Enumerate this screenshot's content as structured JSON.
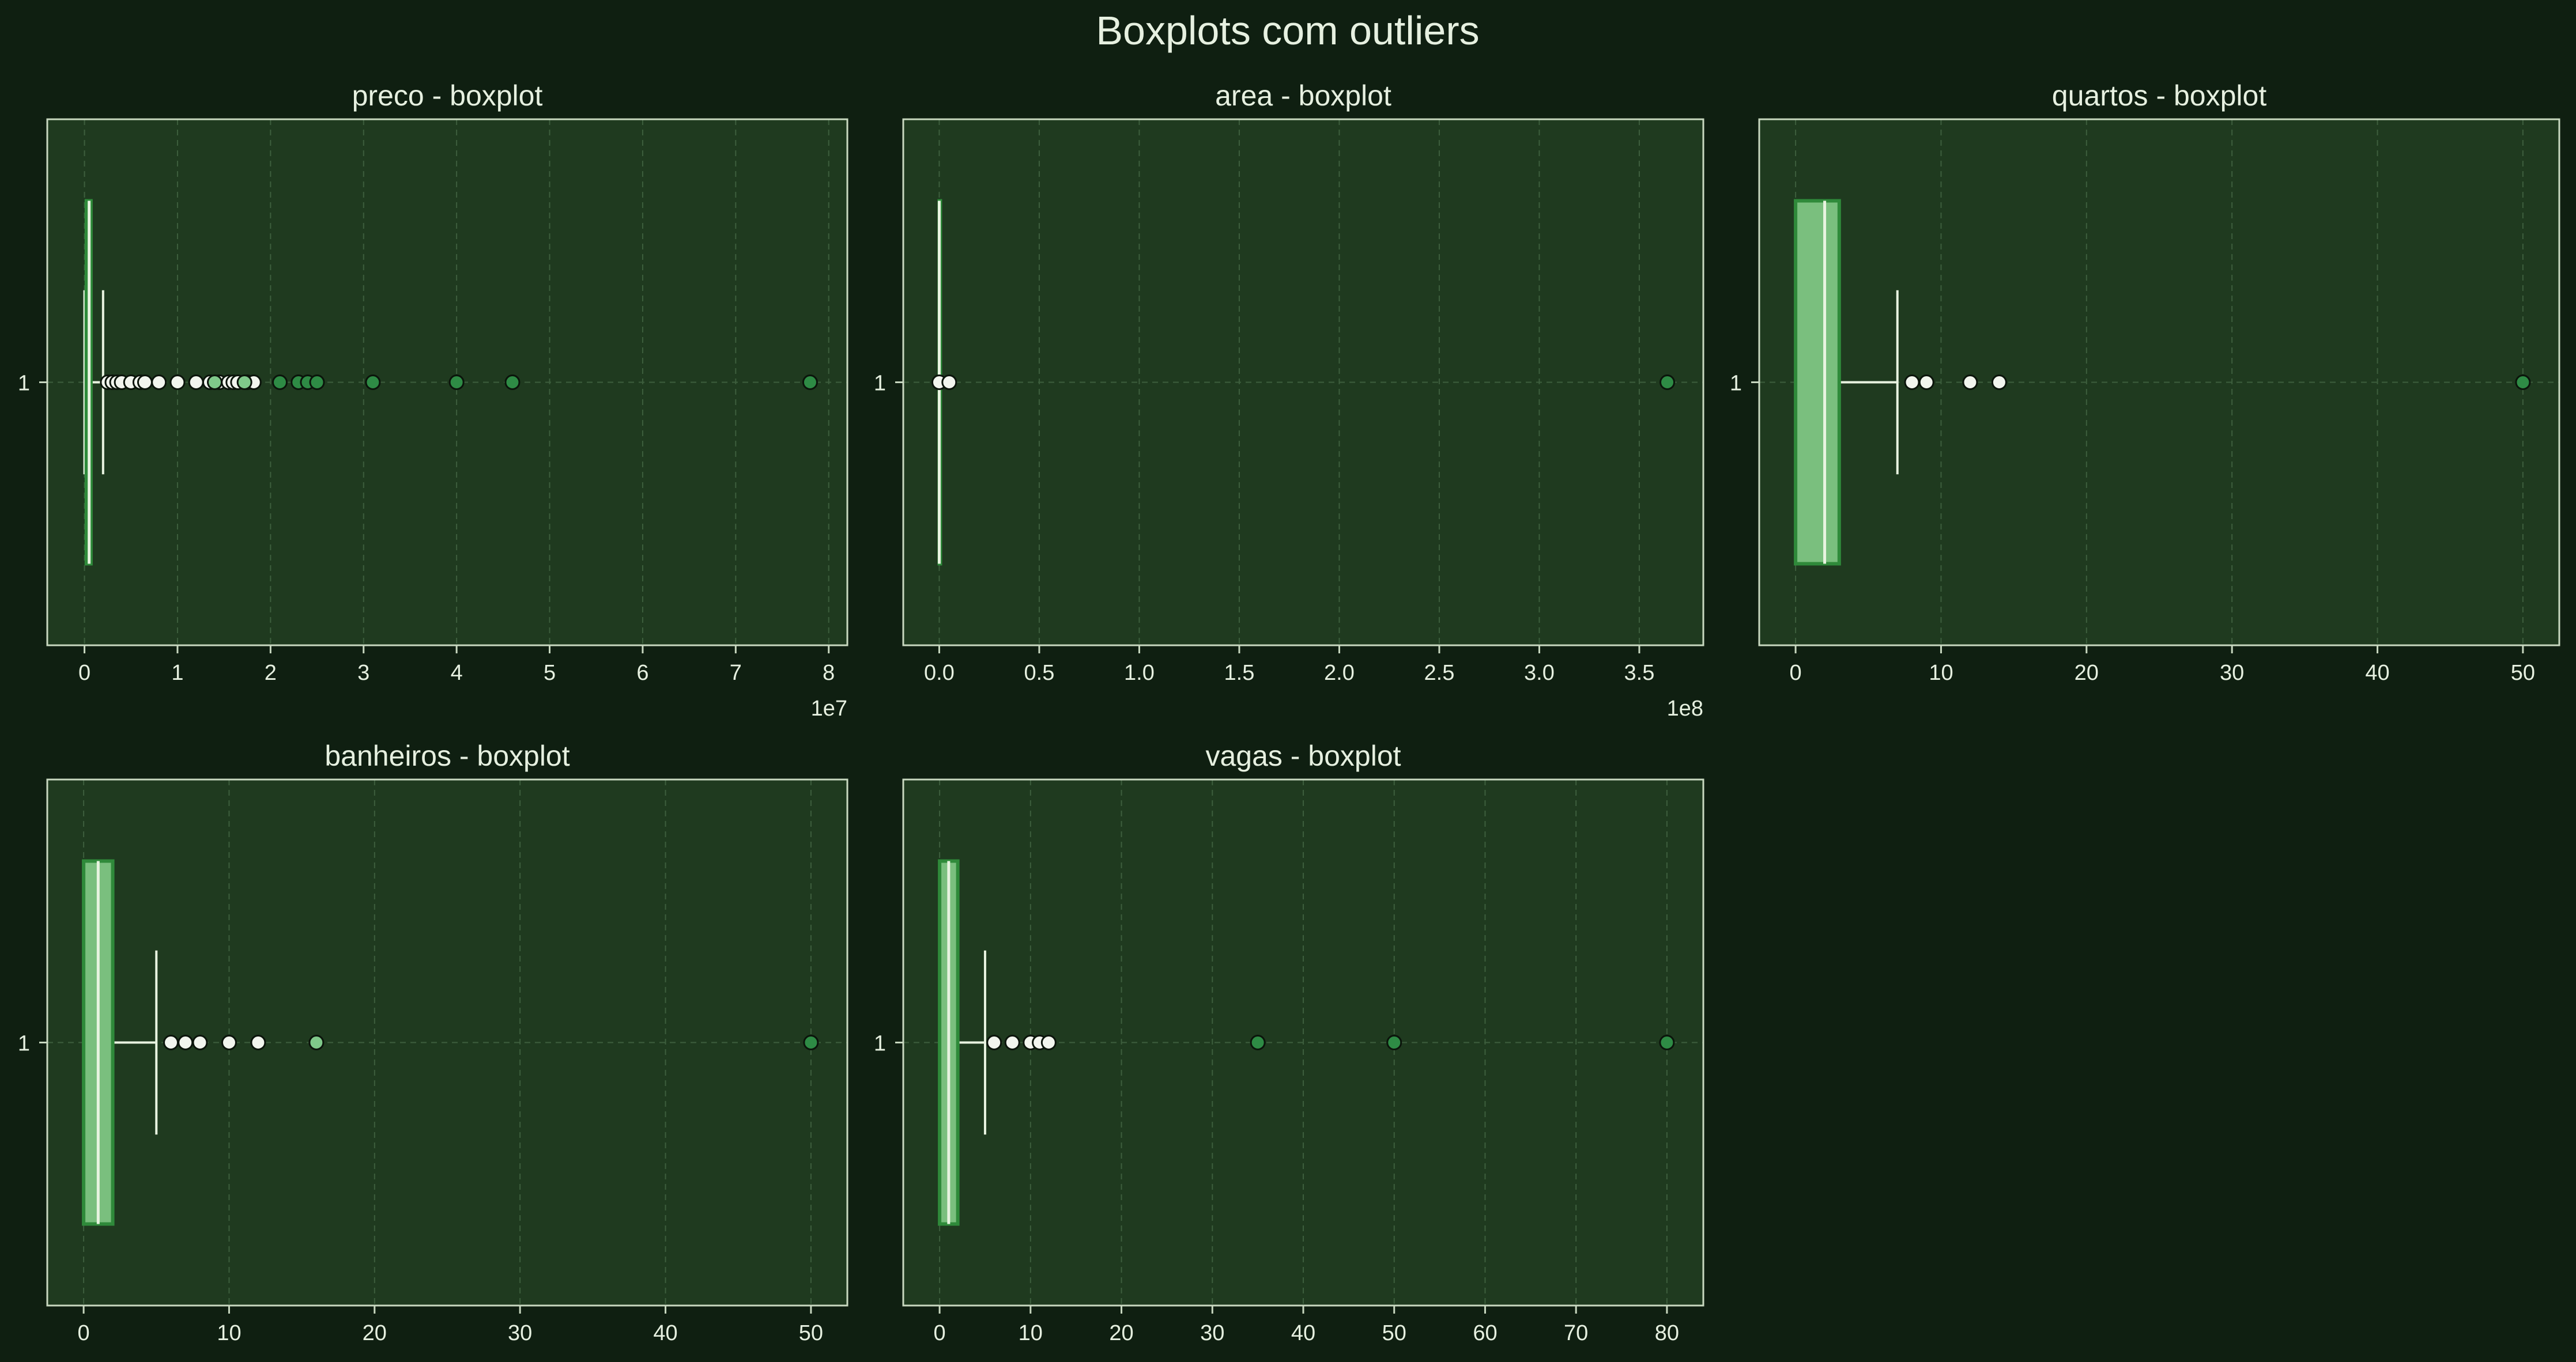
{
  "figure": {
    "title": "Boxplots com outliers",
    "background": "#0f1f11",
    "axes_background": "#1f3a1f",
    "text_color": "#e6f0e0",
    "spine_color": "#c8d8c0",
    "grid_color": "#3d5e3d"
  },
  "chart_data": [
    {
      "type": "boxplot",
      "title": "preco - boxplot",
      "category_label": "1",
      "xlim": [
        -0.4,
        8.2
      ],
      "xticks": [
        0,
        1,
        2,
        3,
        4,
        5,
        6,
        7,
        8
      ],
      "xtick_labels": [
        "0",
        "1",
        "2",
        "3",
        "4",
        "5",
        "6",
        "7",
        "8"
      ],
      "offset_label": "1e7",
      "grid": true,
      "box": {
        "q1": 0.02,
        "median": 0.05,
        "q3": 0.07,
        "whisker_low": 0.0,
        "whisker_high": 0.2
      },
      "outliers": [
        {
          "x": 0.25,
          "fill": "#f2f5ee"
        },
        {
          "x": 0.3,
          "fill": "#f2f5ee"
        },
        {
          "x": 0.35,
          "fill": "#f2f5ee"
        },
        {
          "x": 0.4,
          "fill": "#f2f5ee"
        },
        {
          "x": 0.5,
          "fill": "#f2f5ee"
        },
        {
          "x": 0.6,
          "fill": "#f2f5ee"
        },
        {
          "x": 0.65,
          "fill": "#f2f5ee"
        },
        {
          "x": 0.8,
          "fill": "#f2f5ee"
        },
        {
          "x": 1.0,
          "fill": "#f2f5ee"
        },
        {
          "x": 1.2,
          "fill": "#f2f5ee"
        },
        {
          "x": 1.35,
          "fill": "#f2f5ee"
        },
        {
          "x": 1.45,
          "fill": "#f2f5ee"
        },
        {
          "x": 1.55,
          "fill": "#f2f5ee"
        },
        {
          "x": 1.6,
          "fill": "#f2f5ee"
        },
        {
          "x": 1.65,
          "fill": "#f2f5ee"
        },
        {
          "x": 1.75,
          "fill": "#f2f5ee"
        },
        {
          "x": 1.82,
          "fill": "#f2f5ee"
        },
        {
          "x": 1.4,
          "fill": "#7fc98a"
        },
        {
          "x": 1.72,
          "fill": "#7fc98a"
        },
        {
          "x": 2.1,
          "fill": "#2e8b45"
        },
        {
          "x": 2.3,
          "fill": "#2e8b45"
        },
        {
          "x": 2.4,
          "fill": "#2e8b45"
        },
        {
          "x": 2.5,
          "fill": "#2e8b45"
        },
        {
          "x": 3.1,
          "fill": "#2e8b45"
        },
        {
          "x": 4.0,
          "fill": "#2e8b45"
        },
        {
          "x": 4.6,
          "fill": "#2e8b45"
        },
        {
          "x": 7.8,
          "fill": "#2e8b45"
        }
      ]
    },
    {
      "type": "boxplot",
      "title": "area - boxplot",
      "category_label": "1",
      "xlim": [
        -0.18,
        3.82
      ],
      "xticks": [
        0,
        0.5,
        1.0,
        1.5,
        2.0,
        2.5,
        3.0,
        3.5
      ],
      "xtick_labels": [
        "0.0",
        "0.5",
        "1.0",
        "1.5",
        "2.0",
        "2.5",
        "3.0",
        "3.5"
      ],
      "offset_label": "1e8",
      "grid": true,
      "box": {
        "q1": 0.0,
        "median": 0.0,
        "q3": 0.0,
        "whisker_low": 0.0,
        "whisker_high": 0.0
      },
      "outliers": [
        {
          "x": 0.0,
          "fill": "#f2f5ee"
        },
        {
          "x": 0.05,
          "fill": "#f2f5ee"
        },
        {
          "x": 3.64,
          "fill": "#2e8b45"
        }
      ]
    },
    {
      "type": "boxplot",
      "title": "quartos - boxplot",
      "category_label": "1",
      "xlim": [
        -2.5,
        52.5
      ],
      "xticks": [
        0,
        10,
        20,
        30,
        40,
        50
      ],
      "xtick_labels": [
        "0",
        "10",
        "20",
        "30",
        "40",
        "50"
      ],
      "offset_label": "",
      "grid": true,
      "box": {
        "q1": 0,
        "median": 2,
        "q3": 3,
        "whisker_low": 0,
        "whisker_high": 7
      },
      "outliers": [
        {
          "x": 8,
          "fill": "#f2f5ee"
        },
        {
          "x": 9,
          "fill": "#f2f5ee"
        },
        {
          "x": 12,
          "fill": "#f2f5ee"
        },
        {
          "x": 14,
          "fill": "#f2f5ee"
        },
        {
          "x": 50,
          "fill": "#2e8b45"
        }
      ]
    },
    {
      "type": "boxplot",
      "title": "banheiros - boxplot",
      "category_label": "1",
      "xlim": [
        -2.5,
        52.5
      ],
      "xticks": [
        0,
        10,
        20,
        30,
        40,
        50
      ],
      "xtick_labels": [
        "0",
        "10",
        "20",
        "30",
        "40",
        "50"
      ],
      "offset_label": "",
      "grid": true,
      "box": {
        "q1": 0,
        "median": 1,
        "q3": 2,
        "whisker_low": 0,
        "whisker_high": 5
      },
      "outliers": [
        {
          "x": 6,
          "fill": "#f2f5ee"
        },
        {
          "x": 7,
          "fill": "#f2f5ee"
        },
        {
          "x": 8,
          "fill": "#f2f5ee"
        },
        {
          "x": 10,
          "fill": "#f2f5ee"
        },
        {
          "x": 12,
          "fill": "#f2f5ee"
        },
        {
          "x": 16,
          "fill": "#7fc98a"
        },
        {
          "x": 50,
          "fill": "#2e8b45"
        }
      ]
    },
    {
      "type": "boxplot",
      "title": "vagas - boxplot",
      "category_label": "1",
      "xlim": [
        -4,
        84
      ],
      "xticks": [
        0,
        10,
        20,
        30,
        40,
        50,
        60,
        70,
        80
      ],
      "xtick_labels": [
        "0",
        "10",
        "20",
        "30",
        "40",
        "50",
        "60",
        "70",
        "80"
      ],
      "offset_label": "",
      "grid": true,
      "box": {
        "q1": 0,
        "median": 1,
        "q3": 2,
        "whisker_low": 0,
        "whisker_high": 5
      },
      "outliers": [
        {
          "x": 6,
          "fill": "#f2f5ee"
        },
        {
          "x": 8,
          "fill": "#f2f5ee"
        },
        {
          "x": 10,
          "fill": "#f2f5ee"
        },
        {
          "x": 11,
          "fill": "#f2f5ee"
        },
        {
          "x": 12,
          "fill": "#f2f5ee"
        },
        {
          "x": 35,
          "fill": "#2e8b45"
        },
        {
          "x": 50,
          "fill": "#2e8b45"
        },
        {
          "x": 80,
          "fill": "#2e8b45"
        }
      ]
    }
  ]
}
